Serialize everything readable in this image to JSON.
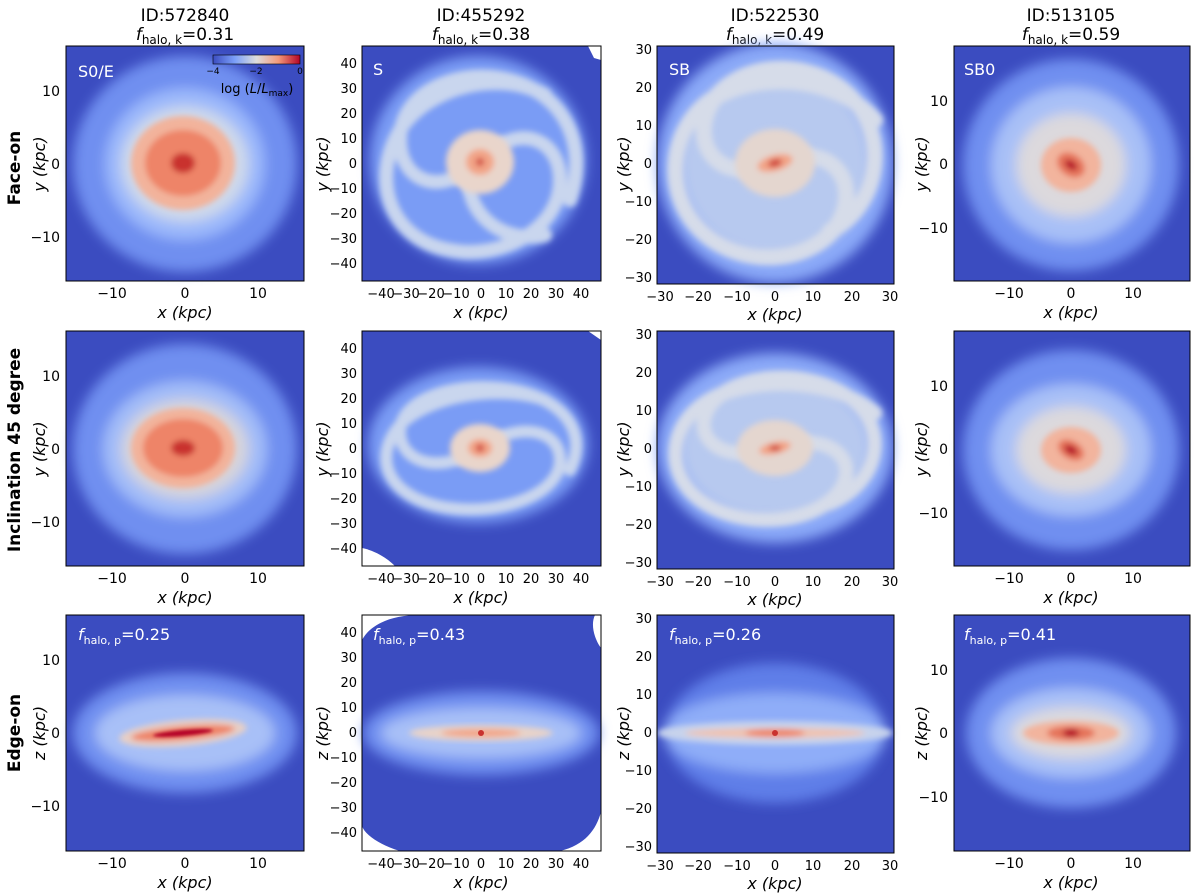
{
  "figure": {
    "columns": [
      {
        "id": "ID:572840",
        "fk_sym": "f",
        "fk_sub": "halo, k",
        "fk_val": "=0.31",
        "type": "S0/E",
        "xlabel": "x (kpc)",
        "xticks": [
          "−10",
          "0",
          "10"
        ],
        "range": 16,
        "yticks": [
          "10",
          "0",
          "−10"
        ],
        "yticks_edge": [
          "10",
          "0",
          "−10"
        ],
        "fp_sym": "f",
        "fp_sub": "halo, p",
        "fp_val": "=0.25"
      },
      {
        "id": "ID:455292",
        "fk_sym": "f",
        "fk_sub": "halo, k",
        "fk_val": "=0.38",
        "type": "S",
        "xlabel": "x (kpc)",
        "xticks": [
          "−40",
          "−30",
          "−20",
          "−10",
          "0",
          "10",
          "20",
          "30",
          "40"
        ],
        "range": 47,
        "yticks": [
          "40",
          "30",
          "20",
          "10",
          "0",
          "−10",
          "−20",
          "−30",
          "−40"
        ],
        "yticks_edge": [
          "40",
          "30",
          "20",
          "10",
          "0",
          "−10",
          "−20",
          "−30",
          "−40"
        ],
        "fp_sym": "f",
        "fp_sub": "halo, p",
        "fp_val": "=0.43"
      },
      {
        "id": "ID:522530",
        "fk_sym": "f",
        "fk_sub": "halo, k",
        "fk_val": "=0.49",
        "type": "SB",
        "xlabel": "x (kpc)",
        "xticks": [
          "−30",
          "−20",
          "−10",
          "0",
          "10",
          "20",
          "30"
        ],
        "range": 31,
        "yticks": [
          "30",
          "20",
          "10",
          "0",
          "−10",
          "−20",
          "−30"
        ],
        "yticks_edge": [
          "30",
          "20",
          "10",
          "0",
          "−10",
          "−20",
          "−30"
        ],
        "fp_sym": "f",
        "fp_sub": "halo, p",
        "fp_val": "=0.26"
      },
      {
        "id": "ID:513105",
        "fk_sym": "f",
        "fk_sub": "halo, k",
        "fk_val": "=0.59",
        "type": "SB0",
        "xlabel": "x (kpc)",
        "xticks": [
          "−10",
          "0",
          "10"
        ],
        "range": 19,
        "yticks": [
          "10",
          "0",
          "−10"
        ],
        "yticks_edge": [
          "10",
          "0",
          "−10"
        ],
        "fp_sym": "f",
        "fp_sub": "halo, p",
        "fp_val": "=0.41"
      }
    ],
    "rows": [
      {
        "label": "Face-on",
        "ylabel_y": "y (kpc)"
      },
      {
        "label": "Inclination 45 degree",
        "ylabel_y": "y (kpc)"
      },
      {
        "label": "Edge-on",
        "ylabel_z": "z (kpc)"
      }
    ],
    "colorbar": {
      "ticks": [
        "−4",
        "−2",
        "0"
      ],
      "label_prefix": "log (",
      "label_L": "L",
      "label_mid": "/",
      "label_Lmax": "L",
      "label_sub": "max",
      "label_suffix": ")"
    },
    "colors": {
      "background_blue": "#3b4cc0",
      "mid_white": "#dddddd",
      "peak_red": "#b40426"
    }
  }
}
